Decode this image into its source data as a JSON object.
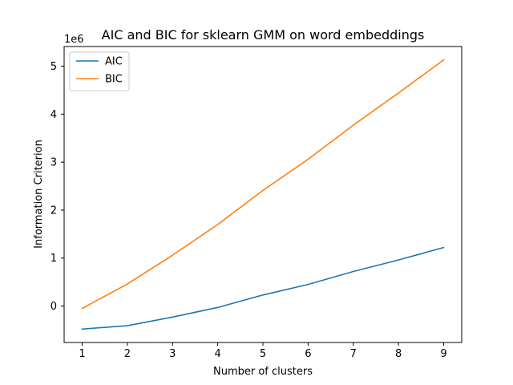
{
  "chart_data": {
    "type": "line",
    "title": "AIC and BIC for sklearn GMM on word embeddings",
    "xlabel": "Number of clusters",
    "ylabel": "Information Criterion",
    "y_offset_label": "1e6",
    "x": [
      1,
      2,
      3,
      4,
      5,
      6,
      7,
      8,
      9
    ],
    "xlim": [
      0.6,
      9.4
    ],
    "ylim": [
      -0.76,
      5.41
    ],
    "x_ticks": [
      1,
      2,
      3,
      4,
      5,
      6,
      7,
      8,
      9
    ],
    "y_ticks": [
      0,
      1,
      2,
      3,
      4,
      5
    ],
    "y_tick_unit": 1000000,
    "grid": false,
    "legend_position": "top-left",
    "series": [
      {
        "name": "AIC",
        "color": "#1f77b4",
        "values": [
          -0.48,
          -0.41,
          -0.23,
          -0.03,
          0.23,
          0.45,
          0.72,
          0.96,
          1.22
        ]
      },
      {
        "name": "BIC",
        "color": "#ff7f0e",
        "values": [
          -0.05,
          0.46,
          1.06,
          1.7,
          2.41,
          3.06,
          3.77,
          4.44,
          5.13
        ]
      }
    ]
  }
}
